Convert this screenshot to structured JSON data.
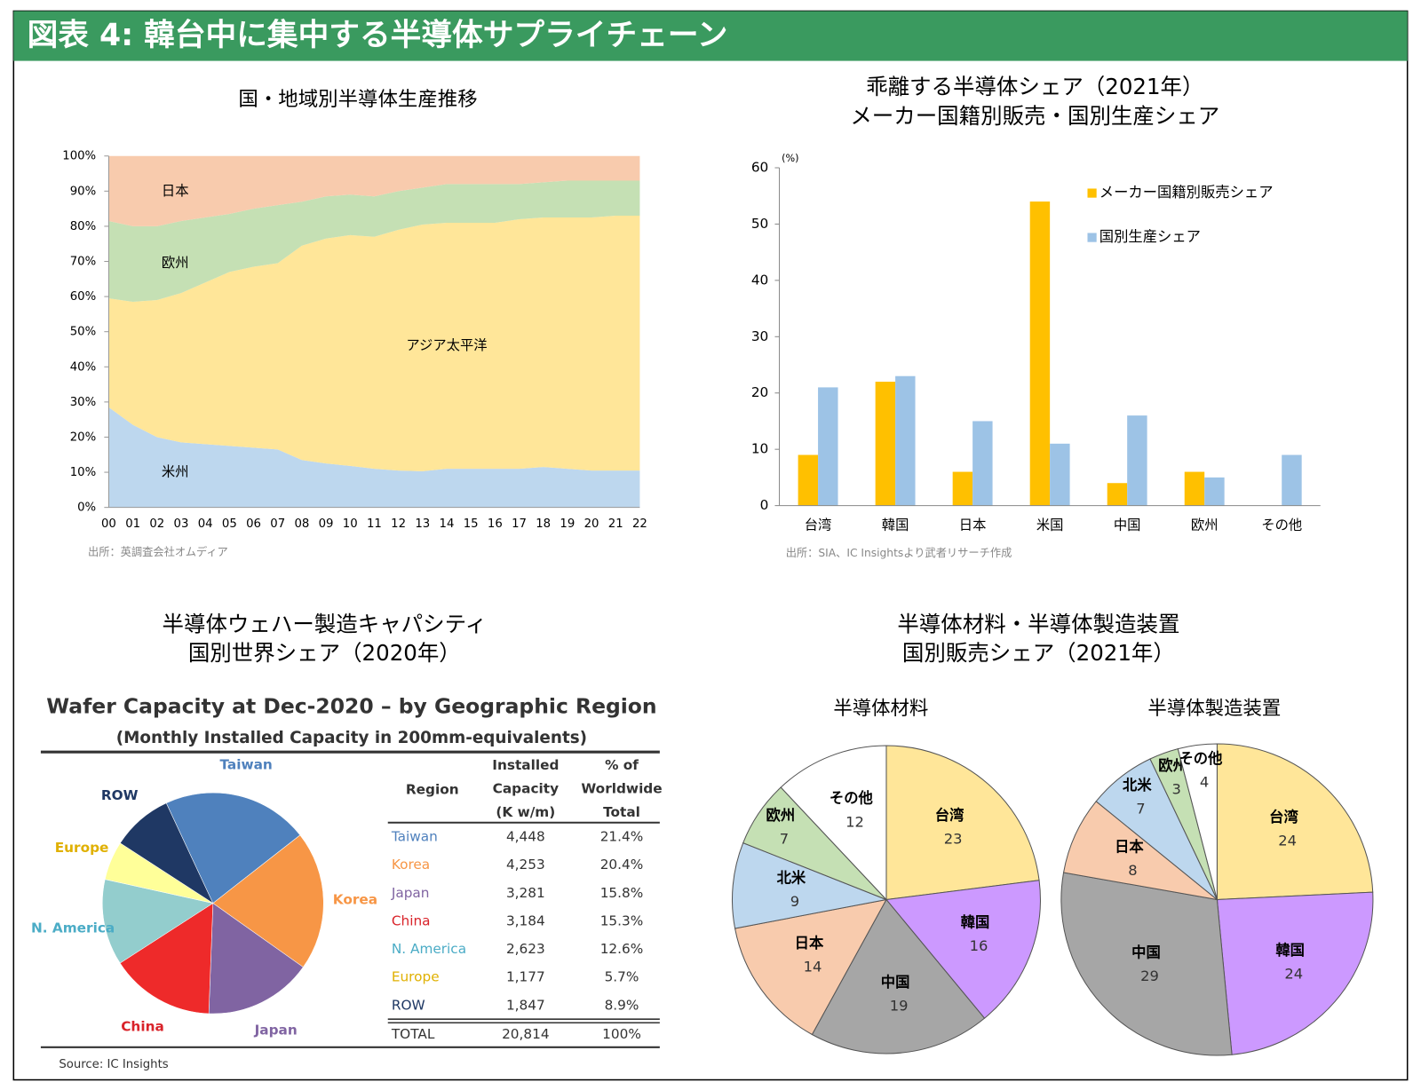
{
  "title": "図表 4: 韓台中に集中する半導体サプライチェーン",
  "chart_data": [
    {
      "type": "area",
      "stacked": true,
      "title": [
        "国・地域別半導体生産推移"
      ],
      "source": "出所：英調査会社オムディア",
      "categories": [
        "00",
        "01",
        "02",
        "03",
        "04",
        "05",
        "06",
        "07",
        "08",
        "09",
        "10",
        "11",
        "12",
        "13",
        "14",
        "15",
        "16",
        "17",
        "18",
        "19",
        "20",
        "21",
        "22"
      ],
      "ylim": [
        0,
        100
      ],
      "yticks": [
        {
          "value": 0,
          "label": "0%"
        },
        {
          "value": 10,
          "label": "10%"
        },
        {
          "value": 20,
          "label": "20%"
        },
        {
          "value": 30,
          "label": "30%"
        },
        {
          "value": 40,
          "label": "40%"
        },
        {
          "value": 50,
          "label": "50%"
        },
        {
          "value": 60,
          "label": "60%"
        },
        {
          "value": 70,
          "label": "70%"
        },
        {
          "value": 80,
          "label": "80%"
        },
        {
          "value": 90,
          "label": "90%"
        },
        {
          "value": 100,
          "label": "100%"
        }
      ],
      "series": [
        {
          "name": "米州",
          "color": "#bdd7ee",
          "values": [
            28.5,
            23.5,
            20,
            18.5,
            18,
            17.5,
            17,
            16.5,
            13.5,
            12.5,
            11.8,
            11,
            10.5,
            10.3,
            11,
            11,
            11,
            11,
            11.5,
            11,
            10.5,
            10.5,
            10.5
          ]
        },
        {
          "name": "アジア太平洋",
          "color": "#ffe699",
          "values": [
            31,
            35,
            39,
            42.5,
            46,
            49.5,
            51.5,
            53,
            61,
            64,
            65.7,
            66,
            68.5,
            70.2,
            70,
            70,
            70,
            71,
            71,
            71.5,
            72,
            72.5,
            72.5
          ]
        },
        {
          "name": "欧州",
          "color": "#c5e0b4",
          "values": [
            22,
            21.5,
            21,
            20.5,
            18.5,
            16.5,
            16.5,
            16.5,
            12.5,
            12,
            11.5,
            11.5,
            11,
            10.5,
            11,
            11,
            11,
            10,
            10,
            10.5,
            10.5,
            10,
            10
          ]
        },
        {
          "name": "日本",
          "color": "#f8cbad",
          "values": [
            18.5,
            20,
            20,
            18.5,
            17.5,
            16.5,
            15,
            14,
            13,
            11.5,
            11,
            11.5,
            10,
            9,
            8,
            8,
            8,
            8,
            7.5,
            7,
            7,
            7,
            7
          ]
        }
      ]
    },
    {
      "type": "bar",
      "title": [
        "乖離する半導体シェア（2021年）",
        "メーカー国籍別販売・国別生産シェア"
      ],
      "y_label": "(%)",
      "source": "出所：SIA、IC Insightsより武者リサーチ作成",
      "categories": [
        "台湾",
        "韓国",
        "日本",
        "米国",
        "中国",
        "欧州",
        "その他"
      ],
      "ylim": [
        0,
        60
      ],
      "yticks": [
        0,
        10,
        20,
        30,
        40,
        50,
        60
      ],
      "series": [
        {
          "name": "メーカー国籍別販売シェア",
          "color": "#ffc000",
          "values": [
            9,
            22,
            6,
            54,
            4,
            6,
            null
          ]
        },
        {
          "name": "国別生産シェア",
          "color": "#9dc3e6",
          "values": [
            21,
            23,
            15,
            11,
            16,
            5,
            9
          ]
        }
      ]
    },
    {
      "type": "pie",
      "title": [
        "半導体ウェハー製造キャパシティ",
        "国別世界シェア（2020年）"
      ],
      "inner_title": "Wafer Capacity at Dec-2020 – by Geographic Region",
      "inner_subtitle": "(Monthly Installed Capacity in 200mm-equivalents)",
      "source": "Source: IC Insights",
      "categories": [
        "Taiwan",
        "Korea",
        "Japan",
        "China",
        "N. America",
        "Europe",
        "ROW"
      ],
      "values": [
        21.4,
        20.4,
        15.8,
        15.3,
        12.6,
        5.7,
        8.9
      ],
      "colors": [
        "#4f81bd",
        "#f79646",
        "#8064a2",
        "#ee2a2a",
        "#93cdcd",
        "#ffff99",
        "#1f3864"
      ],
      "text_colors": [
        "#4f81bd",
        "#f79646",
        "#8064a2",
        "#d9232a",
        "#4bacc6",
        "#e0b000",
        "#1f3864"
      ],
      "table": {
        "header": [
          [
            "Region"
          ],
          [
            "Installed",
            "Capacity",
            "(K w/m)"
          ],
          [
            "% of",
            "Worldwide",
            "Total"
          ]
        ],
        "rows": [
          [
            "Taiwan",
            "4,448",
            "21.4%"
          ],
          [
            "Korea",
            "4,253",
            "20.4%"
          ],
          [
            "Japan",
            "3,281",
            "15.8%"
          ],
          [
            "China",
            "3,184",
            "15.3%"
          ],
          [
            "N. America",
            "2,623",
            "12.6%"
          ],
          [
            "Europe",
            "1,177",
            "5.7%"
          ],
          [
            "ROW",
            "1,847",
            "8.9%"
          ]
        ],
        "total": [
          "TOTAL",
          "20,814",
          "100%"
        ]
      }
    },
    {
      "type": "pie",
      "title": [
        "半導体材料・半導体製造装置",
        "国別販売シェア（2021年）"
      ],
      "subtitle": "半導体材料",
      "categories": [
        "台湾",
        "韓国",
        "中国",
        "日本",
        "北米",
        "欧州",
        "その他"
      ],
      "values": [
        23,
        16,
        19,
        14,
        9,
        7,
        12
      ],
      "colors": [
        "#ffe699",
        "#cc99ff",
        "#a6a6a6",
        "#f8cbad",
        "#bdd7ee",
        "#c5e0b4",
        "#ffffff"
      ]
    },
    {
      "type": "pie",
      "subtitle": "半導体製造装置",
      "categories": [
        "台湾",
        "韓国",
        "中国",
        "日本",
        "北米",
        "欧州",
        "その他"
      ],
      "values": [
        24,
        24,
        29,
        8,
        7,
        3,
        4
      ],
      "colors": [
        "#ffe699",
        "#cc99ff",
        "#a6a6a6",
        "#f8cbad",
        "#bdd7ee",
        "#c5e0b4",
        "#ffffff"
      ]
    }
  ]
}
